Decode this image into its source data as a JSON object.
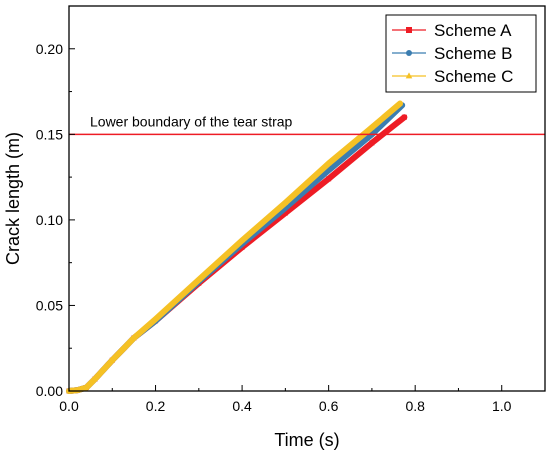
{
  "chart_data": {
    "type": "line",
    "title": "",
    "xlabel": "Time (s)",
    "ylabel": "Crack length (m)",
    "xlim": [
      0.0,
      1.1
    ],
    "ylim": [
      0.0,
      0.225
    ],
    "xticks": [
      0.0,
      0.2,
      0.4,
      0.6,
      0.8,
      1.0
    ],
    "yticks": [
      0.0,
      0.05,
      0.1,
      0.15,
      0.2
    ],
    "xtick_labels": [
      "0.0",
      "0.2",
      "0.4",
      "0.6",
      "0.8",
      "1.0"
    ],
    "ytick_labels": [
      "0.00",
      "0.05",
      "0.10",
      "0.15",
      "0.20"
    ],
    "grid": false,
    "legend_position": "top-right",
    "series": [
      {
        "name": "Scheme A",
        "color": "#ee1c25",
        "marker": "square",
        "x": [
          0.0,
          0.02,
          0.04,
          0.06,
          0.1,
          0.15,
          0.2,
          0.3,
          0.4,
          0.5,
          0.6,
          0.7,
          0.775
        ],
        "y": [
          0.0,
          0.0005,
          0.002,
          0.007,
          0.018,
          0.031,
          0.041,
          0.063,
          0.084,
          0.104,
          0.124,
          0.145,
          0.16
        ]
      },
      {
        "name": "Scheme B",
        "color": "#3b7db0",
        "marker": "circle",
        "x": [
          0.0,
          0.02,
          0.04,
          0.06,
          0.1,
          0.15,
          0.2,
          0.3,
          0.4,
          0.5,
          0.6,
          0.7,
          0.77
        ],
        "y": [
          0.0,
          0.0005,
          0.002,
          0.007,
          0.018,
          0.031,
          0.041,
          0.064,
          0.086,
          0.107,
          0.129,
          0.15,
          0.167
        ]
      },
      {
        "name": "Scheme C",
        "color": "#f5c125",
        "marker": "triangle",
        "x": [
          0.0,
          0.02,
          0.04,
          0.06,
          0.1,
          0.15,
          0.2,
          0.3,
          0.4,
          0.5,
          0.6,
          0.7,
          0.765
        ],
        "y": [
          0.0,
          0.0005,
          0.002,
          0.007,
          0.018,
          0.031,
          0.042,
          0.065,
          0.088,
          0.11,
          0.133,
          0.154,
          0.168
        ]
      }
    ],
    "reference_line": {
      "label": "Lower boundary of the tear strap",
      "y": 0.15,
      "color": "#ee1c25"
    }
  }
}
